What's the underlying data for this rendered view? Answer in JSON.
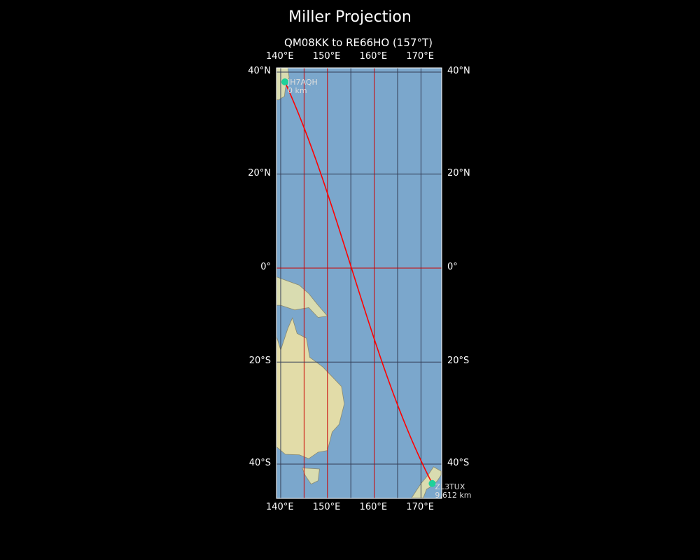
{
  "title": "Miller Projection",
  "subtitle": "QM08KK to RE66HO (157°T)",
  "extent": {
    "lon": [
      139.1,
      174.3
    ],
    "lat": [
      -46,
      40.7
    ]
  },
  "lon_ticks": [
    {
      "v": 140,
      "label": "140°E"
    },
    {
      "v": 150,
      "label": "150°E"
    },
    {
      "v": 160,
      "label": "160°E"
    },
    {
      "v": 170,
      "label": "170°E"
    }
  ],
  "lat_ticks": [
    {
      "v": 40,
      "label": "40°N"
    },
    {
      "v": 20,
      "label": "20°N"
    },
    {
      "v": 0,
      "label": "0°"
    },
    {
      "v": -20,
      "label": "20°S"
    },
    {
      "v": -40,
      "label": "40°S"
    }
  ],
  "gridlines": {
    "lons": [
      140,
      145,
      150,
      155,
      160,
      165,
      170
    ],
    "lats": [
      40,
      20,
      0,
      -20,
      -40
    ]
  },
  "start": {
    "call": "JH7AQH",
    "dist": "0 km",
    "lon": 140.9,
    "lat": 38.2
  },
  "end": {
    "call": "ZL3TUX",
    "dist": "9,612 km",
    "lon": 172.4,
    "lat": -43.5
  },
  "colors": {
    "path": "#ff0000",
    "marker": "#1fd19a",
    "ocean": "#7ba7cc",
    "land": "#d9dcb0",
    "grid_red": "#cc0000",
    "grid_dark": "#333c55"
  }
}
